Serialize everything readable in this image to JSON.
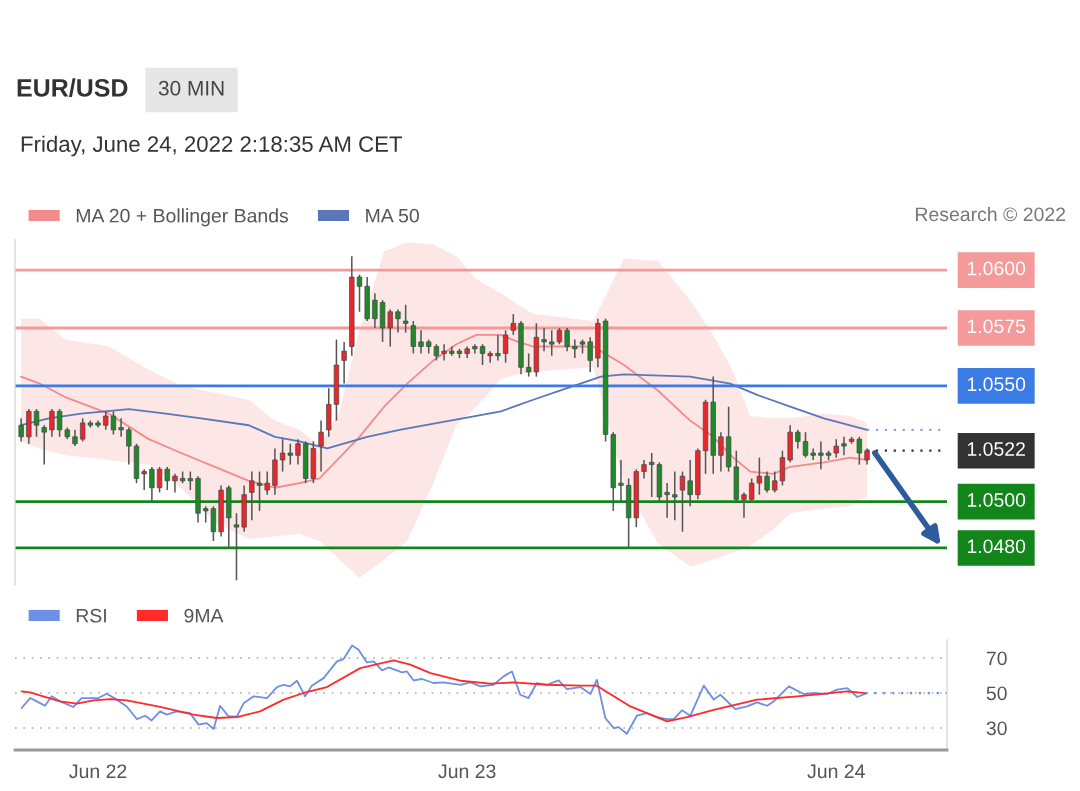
{
  "chart_data": [
    {
      "type": "candlestick",
      "title": "EUR/USD",
      "subtitle": "Friday, June 24, 2022 2:18:35 AM CET",
      "annotations": [
        "30 MIN",
        "Research © 2022"
      ],
      "xlim": [
        "2022-06-21T18:36",
        "2022-06-24T07:12"
      ],
      "ylim": [
        1.0464,
        1.0613
      ],
      "tick_labels": false,
      "legend": "top left",
      "series": [
        {
          "type": "candlestick",
          "color": "#e8282c",
          "x": [
            "2022-06-21T19:30",
            "2022-06-21T21:00",
            "2022-06-21T23:00",
            "2022-06-22T00:30",
            "2022-06-22T03:00",
            "2022-06-22T04:00",
            "2022-06-22T05:00",
            "2022-06-22T08:00",
            "2022-06-22T09:30",
            "2022-06-22T10:00",
            "2022-06-22T11:00",
            "2022-06-22T11:30",
            "2022-06-22T12:00",
            "2022-06-22T13:00",
            "2022-06-22T14:00",
            "2022-06-22T14:30",
            "2022-06-22T15:00",
            "2022-06-22T15:30",
            "2022-06-22T16:00",
            "2022-06-22T16:30",
            "2022-06-22T19:00",
            "2022-06-22T22:30",
            "2022-06-23T00:00",
            "2022-06-23T01:30",
            "2022-06-23T02:30",
            "2022-06-23T03:00",
            "2022-06-23T04:30",
            "2022-06-23T06:00",
            "2022-06-23T08:30",
            "2022-06-23T11:00",
            "2022-06-23T11:30",
            "2022-06-23T14:00",
            "2022-06-23T15:00",
            "2022-06-23T15:30",
            "2022-06-23T16:30",
            "2022-06-23T18:00",
            "2022-06-23T18:30",
            "2022-06-23T19:00",
            "2022-06-23T20:00",
            "2022-06-23T20:30",
            "2022-06-23T21:00",
            "2022-06-24T00:00",
            "2022-06-24T01:00",
            "2022-06-24T02:00"
          ],
          "ohlc": [
            [
              1.0528,
              1.054,
              1.0525,
              1.0539
            ],
            [
              1.0531,
              1.054,
              1.0528,
              1.0539
            ],
            [
              1.0527,
              1.0536,
              1.0526,
              1.0534
            ],
            [
              1.0533,
              1.0539,
              1.0531,
              1.0537
            ],
            [
              1.0512,
              1.0514,
              1.0505,
              1.0513
            ],
            [
              1.0506,
              1.0515,
              1.0504,
              1.0514
            ],
            [
              1.0509,
              1.0512,
              1.0504,
              1.0511
            ],
            [
              1.0487,
              1.0507,
              1.0485,
              1.0505
            ],
            [
              1.0489,
              1.0507,
              1.0487,
              1.0503
            ],
            [
              1.0504,
              1.0513,
              1.0492,
              1.0509
            ],
            [
              1.0505,
              1.0513,
              1.0503,
              1.0508
            ],
            [
              1.0507,
              1.0523,
              1.0503,
              1.0518
            ],
            [
              1.0518,
              1.0527,
              1.0513,
              1.0521
            ],
            [
              1.052,
              1.0527,
              1.0516,
              1.0525
            ],
            [
              1.051,
              1.0526,
              1.0508,
              1.0523
            ],
            [
              1.0524,
              1.0535,
              1.0513,
              1.053
            ],
            [
              1.0531,
              1.0549,
              1.0528,
              1.0542
            ],
            [
              1.0542,
              1.057,
              1.0535,
              1.0559
            ],
            [
              1.0561,
              1.0569,
              1.0551,
              1.0565
            ],
            [
              1.0567,
              1.0606,
              1.0563,
              1.0597
            ],
            [
              1.0575,
              1.0583,
              1.0567,
              1.0582
            ],
            [
              1.0564,
              1.0568,
              1.0561,
              1.0565
            ],
            [
              1.0564,
              1.0567,
              1.0562,
              1.0566
            ],
            [
              1.0563,
              1.0565,
              1.056,
              1.0564
            ],
            [
              1.0564,
              1.0574,
              1.056,
              1.0572
            ],
            [
              1.0574,
              1.0581,
              1.0572,
              1.0577
            ],
            [
              1.0556,
              1.0577,
              1.0554,
              1.0571
            ],
            [
              1.0569,
              1.0575,
              1.0568,
              1.0574
            ],
            [
              1.0562,
              1.0579,
              1.0558,
              1.0577
            ],
            [
              1.0493,
              1.0514,
              1.0489,
              1.0513
            ],
            [
              1.0513,
              1.0518,
              1.051,
              1.0516
            ],
            [
              1.0505,
              1.0513,
              1.0487,
              1.0511
            ],
            [
              1.0503,
              1.0523,
              1.0501,
              1.0522
            ],
            [
              1.0522,
              1.0544,
              1.0512,
              1.0543
            ],
            [
              1.052,
              1.053,
              1.0513,
              1.0528
            ],
            [
              1.0501,
              1.0504,
              1.0493,
              1.0503
            ],
            [
              1.0501,
              1.051,
              1.05,
              1.0508
            ],
            [
              1.0508,
              1.0519,
              1.0503,
              1.0511
            ],
            [
              1.0505,
              1.0513,
              1.0504,
              1.0509
            ],
            [
              1.0509,
              1.0522,
              1.0507,
              1.0519
            ],
            [
              1.0518,
              1.0533,
              1.0517,
              1.053
            ],
            [
              1.0521,
              1.0527,
              1.0519,
              1.0524
            ],
            [
              1.0526,
              1.0528,
              1.0525,
              1.0527
            ],
            [
              1.0518,
              1.0523,
              1.0516,
              1.0522
            ]
          ]
        },
        {
          "type": "candlestick",
          "color": "#1f8a2a",
          "x": [
            "2022-06-21T19:00",
            "2022-06-21T20:00",
            "2022-06-21T20:30",
            "2022-06-21T21:30",
            "2022-06-21T22:00",
            "2022-06-21T22:30",
            "2022-06-21T23:30",
            "2022-06-22T00:00",
            "2022-06-22T01:00",
            "2022-06-22T01:30",
            "2022-06-22T02:00",
            "2022-06-22T02:30",
            "2022-06-22T03:30",
            "2022-06-22T04:30",
            "2022-06-22T05:30",
            "2022-06-22T06:00",
            "2022-06-22T06:30",
            "2022-06-22T07:00",
            "2022-06-22T07:30",
            "2022-06-22T08:30",
            "2022-06-22T09:00",
            "2022-06-22T10:30",
            "2022-06-22T12:30",
            "2022-06-22T13:30",
            "2022-06-22T17:00",
            "2022-06-22T17:30",
            "2022-06-22T18:00",
            "2022-06-22T18:30",
            "2022-06-22T19:30",
            "2022-06-22T20:00",
            "2022-06-22T20:30",
            "2022-06-22T21:00",
            "2022-06-22T21:30",
            "2022-06-22T22:00",
            "2022-06-22T23:00",
            "2022-06-22T23:30",
            "2022-06-23T00:30",
            "2022-06-23T01:00",
            "2022-06-23T02:00",
            "2022-06-23T03:30",
            "2022-06-23T04:00",
            "2022-06-23T05:00",
            "2022-06-23T05:30",
            "2022-06-23T06:30",
            "2022-06-23T07:00",
            "2022-06-23T07:30",
            "2022-06-23T08:00",
            "2022-06-23T09:00",
            "2022-06-23T09:30",
            "2022-06-23T10:00",
            "2022-06-23T10:30",
            "2022-06-23T12:00",
            "2022-06-23T12:30",
            "2022-06-23T13:00",
            "2022-06-23T13:30",
            "2022-06-23T14:30",
            "2022-06-23T16:00",
            "2022-06-23T17:00",
            "2022-06-23T17:30",
            "2022-06-23T19:30",
            "2022-06-23T21:30",
            "2022-06-23T22:00",
            "2022-06-23T22:30",
            "2022-06-23T23:00",
            "2022-06-23T23:30",
            "2022-06-24T00:30",
            "2022-06-24T01:30"
          ],
          "ohlc": [
            [
              1.0533,
              1.0536,
              1.0526,
              1.0528
            ],
            [
              1.0539,
              1.054,
              1.0528,
              1.0533
            ],
            [
              1.0532,
              1.0533,
              1.0516,
              1.053
            ],
            [
              1.0539,
              1.054,
              1.0528,
              1.0531
            ],
            [
              1.0531,
              1.0532,
              1.0527,
              1.0528
            ],
            [
              1.0528,
              1.0531,
              1.0524,
              1.0525
            ],
            [
              1.0534,
              1.0535,
              1.0532,
              1.0533
            ],
            [
              1.0534,
              1.0535,
              1.0532,
              1.0533
            ],
            [
              1.0537,
              1.0539,
              1.0529,
              1.0531
            ],
            [
              1.0532,
              1.0536,
              1.0528,
              1.0531
            ],
            [
              1.0531,
              1.0532,
              1.0516,
              1.0524
            ],
            [
              1.0524,
              1.0525,
              1.0508,
              1.051
            ],
            [
              1.0514,
              1.0515,
              1.05,
              1.0506
            ],
            [
              1.0514,
              1.0515,
              1.0505,
              1.0509
            ],
            [
              1.051,
              1.0513,
              1.0508,
              1.0509
            ],
            [
              1.051,
              1.0513,
              1.0505,
              1.0509
            ],
            [
              1.051,
              1.0511,
              1.0491,
              1.0495
            ],
            [
              1.0497,
              1.0498,
              1.0491,
              1.0496
            ],
            [
              1.0497,
              1.0498,
              1.0483,
              1.0487
            ],
            [
              1.0506,
              1.0507,
              1.048,
              1.0493
            ],
            [
              1.049,
              1.0495,
              1.0466,
              1.0489
            ],
            [
              1.0508,
              1.0513,
              1.0496,
              1.0507
            ],
            [
              1.0521,
              1.0525,
              1.0516,
              1.052
            ],
            [
              1.0525,
              1.0526,
              1.0508,
              1.051
            ],
            [
              1.0597,
              1.0598,
              1.0582,
              1.0593
            ],
            [
              1.0593,
              1.0597,
              1.0578,
              1.0579
            ],
            [
              1.0587,
              1.059,
              1.0575,
              1.0579
            ],
            [
              1.0586,
              1.0587,
              1.0569,
              1.0575
            ],
            [
              1.0582,
              1.0583,
              1.0573,
              1.0579
            ],
            [
              1.0578,
              1.0585,
              1.0573,
              1.0577
            ],
            [
              1.0576,
              1.0578,
              1.0564,
              1.0567
            ],
            [
              1.0569,
              1.0574,
              1.0564,
              1.0567
            ],
            [
              1.0569,
              1.057,
              1.0564,
              1.0567
            ],
            [
              1.0567,
              1.0568,
              1.0561,
              1.0563
            ],
            [
              1.0565,
              1.0567,
              1.0563,
              1.0564
            ],
            [
              1.0565,
              1.0566,
              1.0562,
              1.0564
            ],
            [
              1.0567,
              1.0568,
              1.0564,
              1.0566
            ],
            [
              1.0567,
              1.0568,
              1.0559,
              1.0564
            ],
            [
              1.0564,
              1.0572,
              1.0561,
              1.0563
            ],
            [
              1.0577,
              1.0578,
              1.0555,
              1.0558
            ],
            [
              1.0558,
              1.0564,
              1.0554,
              1.0556
            ],
            [
              1.057,
              1.0575,
              1.0565,
              1.0569
            ],
            [
              1.0569,
              1.0574,
              1.0563,
              1.0568
            ],
            [
              1.0574,
              1.0575,
              1.0565,
              1.0567
            ],
            [
              1.0567,
              1.057,
              1.0562,
              1.0566
            ],
            [
              1.0569,
              1.057,
              1.0564,
              1.0568
            ],
            [
              1.0569,
              1.0571,
              1.0556,
              1.0561
            ],
            [
              1.0578,
              1.0579,
              1.0526,
              1.0529
            ],
            [
              1.0529,
              1.053,
              1.0496,
              1.0506
            ],
            [
              1.0508,
              1.0518,
              1.05,
              1.0507
            ],
            [
              1.0507,
              1.051,
              1.048,
              1.0493
            ],
            [
              1.0517,
              1.0521,
              1.0502,
              1.0516
            ],
            [
              1.0516,
              1.0517,
              1.05,
              1.0502
            ],
            [
              1.0504,
              1.0508,
              1.0493,
              1.0503
            ],
            [
              1.0503,
              1.0513,
              1.0492,
              1.0502
            ],
            [
              1.0509,
              1.0518,
              1.0498,
              1.0503
            ],
            [
              1.0543,
              1.0554,
              1.0512,
              1.052
            ],
            [
              1.0528,
              1.0541,
              1.0513,
              1.0515
            ],
            [
              1.0515,
              1.0522,
              1.05,
              1.0501
            ],
            [
              1.0511,
              1.0513,
              1.0504,
              1.0505
            ],
            [
              1.053,
              1.0531,
              1.0523,
              1.0526
            ],
            [
              1.0526,
              1.053,
              1.0519,
              1.052
            ],
            [
              1.0521,
              1.0523,
              1.0518,
              1.052
            ],
            [
              1.0521,
              1.0526,
              1.0514,
              1.052
            ],
            [
              1.0521,
              1.0522,
              1.0518,
              1.052
            ],
            [
              1.0525,
              1.0528,
              1.052,
              1.0524
            ],
            [
              1.0527,
              1.0528,
              1.0516,
              1.0521
            ]
          ]
        },
        {
          "type": "line",
          "name": "MA 20 + Bollinger Bands",
          "color": "#f28b8b",
          "x": [
            "2022-06-21T19:00",
            "2022-06-21T20:12",
            "2022-06-21T21:54",
            "2022-06-22T00:42",
            "2022-06-22T03:18",
            "2022-06-22T05:24",
            "2022-06-22T07:36",
            "2022-06-22T09:48",
            "2022-06-22T11:30",
            "2022-06-22T13:06",
            "2022-06-22T14:24",
            "2022-06-22T15:42",
            "2022-06-22T17:00",
            "2022-06-22T18:36",
            "2022-06-22T20:06",
            "2022-06-22T21:48",
            "2022-06-22T23:18",
            "2022-06-23T00:36",
            "2022-06-23T02:12",
            "2022-06-23T03:18",
            "2022-06-23T04:18",
            "2022-06-23T08:12",
            "2022-06-23T10:12",
            "2022-06-23T12:24",
            "2022-06-23T14:30",
            "2022-06-23T16:00",
            "2022-06-23T17:18",
            "2022-06-23T18:24",
            "2022-06-23T19:54",
            "2022-06-23T21:00",
            "2022-06-23T23:12",
            "2022-06-24T00:54",
            "2022-06-24T02:00"
          ],
          "values": [
            1.0554,
            1.0551,
            1.0545,
            1.0538,
            1.0527,
            1.0521,
            1.0515,
            1.0509,
            1.0506,
            1.0508,
            1.051,
            1.0519,
            1.0528,
            1.0541,
            1.0551,
            1.0561,
            1.0568,
            1.0572,
            1.0572,
            1.0569,
            1.0567,
            1.0567,
            1.0559,
            1.0548,
            1.0535,
            1.0528,
            1.0519,
            1.0513,
            1.0512,
            1.0515,
            1.0517,
            1.0519,
            1.0518
          ],
          "upper": [
            1.0579,
            1.0579,
            1.057,
            1.0567,
            1.0557,
            1.055,
            1.0547,
            1.0544,
            1.0535,
            1.0531,
            1.0524,
            1.0539,
            1.0574,
            1.0608,
            1.0612,
            1.0611,
            1.0606,
            1.0596,
            1.059,
            1.0585,
            1.0581,
            1.0578,
            1.0605,
            1.0604,
            1.0587,
            1.0572,
            1.0556,
            1.0537,
            1.0536,
            1.0536,
            1.0538,
            1.0537,
            1.0534
          ],
          "lower": [
            1.0526,
            1.0523,
            1.052,
            1.0518,
            1.0516,
            1.0506,
            1.0491,
            1.0484,
            1.0485,
            1.0486,
            1.0483,
            1.0475,
            1.0467,
            1.0475,
            1.0483,
            1.0508,
            1.0533,
            1.0541,
            1.0553,
            1.0555,
            1.0556,
            1.0558,
            1.0508,
            1.0482,
            1.0472,
            1.0475,
            1.0478,
            1.0481,
            1.0488,
            1.0495,
            1.0497,
            1.0498,
            1.0502
          ]
        },
        {
          "type": "line",
          "name": "MA 50",
          "color": "#5a78b8",
          "x": [
            "2022-06-21T19:00",
            "2022-06-21T20:48",
            "2022-06-21T22:54",
            "2022-06-22T02:00",
            "2022-06-22T04:24",
            "2022-06-22T06:42",
            "2022-06-22T09:48",
            "2022-06-22T11:30",
            "2022-06-22T13:06",
            "2022-06-22T14:54",
            "2022-06-22T17:30",
            "2022-06-22T19:36",
            "2022-06-22T22:54",
            "2022-06-23T02:12",
            "2022-06-23T04:18",
            "2022-06-23T06:30",
            "2022-06-23T08:42",
            "2022-06-23T10:12",
            "2022-06-23T14:30",
            "2022-06-23T17:06",
            "2022-06-23T18:54",
            "2022-06-23T21:00",
            "2022-06-23T23:12",
            "2022-06-24T02:00"
          ],
          "values": [
            1.0533,
            1.0536,
            1.0538,
            1.054,
            1.0538,
            1.0536,
            1.0533,
            1.0528,
            1.0526,
            1.0523,
            1.0528,
            1.0531,
            1.0535,
            1.0539,
            1.0544,
            1.0549,
            1.0554,
            1.0555,
            1.0554,
            1.0551,
            1.0546,
            1.0541,
            1.0536,
            1.0531
          ]
        }
      ],
      "ref_lines": [
        {
          "axis": "y",
          "value": 1.06,
          "label": "1.0600",
          "color": "#f59a9a"
        },
        {
          "axis": "y",
          "value": 1.0575,
          "label": "1.0575",
          "color": "#f59a9a"
        },
        {
          "axis": "y",
          "value": 1.055,
          "label": "1.0550",
          "color": "#3b7be6"
        },
        {
          "axis": "y",
          "value": 1.0531,
          "label": null,
          "color": "#8ea0d0",
          "line_style": "dotted"
        },
        {
          "axis": "y",
          "value": 1.0522,
          "label": "1.0522",
          "color": "#333333",
          "line_style": "dotted"
        },
        {
          "axis": "y",
          "value": 1.05,
          "label": "1.0500",
          "color": "#13861b"
        },
        {
          "axis": "y",
          "value": 1.048,
          "label": "1.0480",
          "color": "#13861b"
        }
      ]
    },
    {
      "type": "line",
      "xlim": [
        "2022-06-21T18:36",
        "2022-06-24T07:12"
      ],
      "ylim": [
        17.4,
        80.3
      ],
      "yticks": [
        30,
        50,
        70
      ],
      "xticks": [
        {
          "value": "2022-06-22",
          "label": "Jun 22"
        },
        {
          "value": "2022-06-23",
          "label": "Jun 23"
        },
        {
          "value": "2022-06-24",
          "label": "Jun 24"
        }
      ],
      "grid": "y",
      "legend": "top left",
      "series": [
        {
          "name": "RSI",
          "color": "#6f8fe6",
          "x": [
            "2022-06-21T19:02",
            "2022-06-21T19:35",
            "2022-06-21T20:01",
            "2022-06-21T20:33",
            "2022-06-21T20:59",
            "2022-06-21T21:32",
            "2022-06-21T22:24",
            "2022-06-21T22:56",
            "2022-06-22T00:01",
            "2022-06-22T00:34",
            "2022-06-22T01:13",
            "2022-06-22T01:52",
            "2022-06-22T02:31",
            "2022-06-22T03:04",
            "2022-06-22T03:29",
            "2022-06-22T04:02",
            "2022-06-22T04:28",
            "2022-06-22T05:07",
            "2022-06-22T05:59",
            "2022-06-22T06:32",
            "2022-06-22T07:04",
            "2022-06-22T07:31",
            "2022-06-22T07:56",
            "2022-06-22T08:29",
            "2022-06-22T09:02",
            "2022-06-22T09:28",
            "2022-06-22T10:07",
            "2022-06-22T10:59",
            "2022-06-22T11:38",
            "2022-06-22T12:04",
            "2022-06-22T12:29",
            "2022-06-22T12:56",
            "2022-06-22T13:28",
            "2022-06-22T13:54",
            "2022-06-22T14:40",
            "2022-06-22T15:32",
            "2022-06-22T15:58",
            "2022-06-22T16:31",
            "2022-06-22T16:56",
            "2022-06-22T17:29",
            "2022-06-22T17:55",
            "2022-06-22T18:28",
            "2022-06-22T18:53",
            "2022-06-22T19:46",
            "2022-06-22T20:05",
            "2022-06-22T20:31",
            "2022-06-22T21:04",
            "2022-06-22T21:49",
            "2022-06-22T22:28",
            "2022-06-22T23:34",
            "2022-06-23T00:13",
            "2022-06-23T00:52",
            "2022-06-23T01:43",
            "2022-06-23T02:22",
            "2022-06-23T02:55",
            "2022-06-23T03:27",
            "2022-06-23T03:59",
            "2022-06-23T04:32",
            "2022-06-23T05:11",
            "2022-06-23T05:57",
            "2022-06-23T06:29",
            "2022-06-23T07:22",
            "2022-06-23T08:01",
            "2022-06-23T08:26",
            "2022-06-23T08:59",
            "2022-06-23T09:32",
            "2022-06-23T09:51",
            "2022-06-23T10:23",
            "2022-06-23T11:02",
            "2022-06-23T11:42",
            "2022-06-23T12:21",
            "2022-06-23T13:00",
            "2022-06-23T13:26",
            "2022-06-23T13:58",
            "2022-06-23T14:31",
            "2022-06-23T15:23",
            "2022-06-23T16:02",
            "2022-06-23T16:28",
            "2022-06-23T17:26",
            "2022-06-23T18:12",
            "2022-06-23T18:51",
            "2022-06-23T19:30",
            "2022-06-23T19:56",
            "2022-06-23T20:55",
            "2022-06-23T21:53",
            "2022-06-23T22:32",
            "2022-06-23T23:25",
            "2022-06-24T00:04",
            "2022-06-24T00:43",
            "2022-06-24T01:22",
            "2022-06-24T01:54"
          ],
          "values": [
            41.4,
            47.1,
            45.2,
            42.7,
            48.1,
            45.2,
            42.0,
            47.1,
            47.1,
            49.6,
            46.2,
            42.3,
            35.1,
            37.0,
            34.3,
            39.5,
            37.6,
            39.5,
            38.5,
            31.9,
            32.8,
            29.4,
            42.7,
            36.6,
            36.6,
            44.2,
            48.1,
            47.1,
            53.4,
            54.7,
            53.8,
            57.0,
            48.1,
            54.2,
            58.5,
            68.1,
            69.4,
            77.2,
            74.7,
            67.5,
            68.1,
            62.9,
            64.6,
            61.8,
            62.3,
            57.2,
            58.0,
            55.7,
            56.1,
            54.7,
            56.1,
            53.8,
            54.7,
            59.5,
            62.3,
            49.0,
            47.1,
            55.7,
            54.7,
            57.2,
            52.2,
            53.4,
            49.4,
            57.6,
            35.7,
            29.9,
            30.5,
            26.7,
            37.0,
            38.5,
            36.2,
            35.1,
            35.1,
            40.1,
            37.0,
            54.2,
            46.2,
            49.0,
            40.8,
            42.3,
            44.6,
            42.7,
            45.2,
            53.8,
            49.4,
            50.0,
            49.4,
            51.9,
            52.8,
            47.7,
            49.6
          ]
        },
        {
          "name": "9MA",
          "color": "#ff2a2a",
          "x": [
            "2022-06-21T19:02",
            "2022-06-21T19:35",
            "2022-06-21T20:26",
            "2022-06-21T21:32",
            "2022-06-21T22:37",
            "2022-06-21T23:42",
            "2022-06-22T00:47",
            "2022-06-22T01:52",
            "2022-06-22T04:02",
            "2022-06-22T06:12",
            "2022-06-22T07:43",
            "2022-06-22T09:02",
            "2022-06-22T10:32",
            "2022-06-22T12:04",
            "2022-06-22T13:22",
            "2022-06-22T14:53",
            "2022-06-22T17:03",
            "2022-06-22T19:13",
            "2022-06-22T20:18",
            "2022-06-22T21:37",
            "2022-06-22T23:34",
            "2022-06-23T01:31",
            "2022-06-23T03:01",
            "2022-06-23T05:11",
            "2022-06-23T07:22",
            "2022-06-23T08:26",
            "2022-06-23T09:32",
            "2022-06-23T10:37",
            "2022-06-23T13:00",
            "2022-06-23T14:18",
            "2022-06-23T16:02",
            "2022-06-23T18:51",
            "2022-06-23T21:28",
            "2022-06-24T00:43",
            "2022-06-24T01:54"
          ],
          "values": [
            50.9,
            50.3,
            48.1,
            45.2,
            43.9,
            45.8,
            46.5,
            45.8,
            42.0,
            37.6,
            35.7,
            36.2,
            39.5,
            46.2,
            50.0,
            53.4,
            64.2,
            68.6,
            66.2,
            61.4,
            57.0,
            55.3,
            56.1,
            54.7,
            54.2,
            54.2,
            48.1,
            42.3,
            33.8,
            36.2,
            40.4,
            46.2,
            48.1,
            50.9,
            49.9
          ]
        }
      ],
      "ref_lines": [
        {
          "axis": "y",
          "value": 49.9,
          "label": null,
          "color": "#6f8fe6",
          "line_style": "dotted"
        }
      ]
    }
  ]
}
